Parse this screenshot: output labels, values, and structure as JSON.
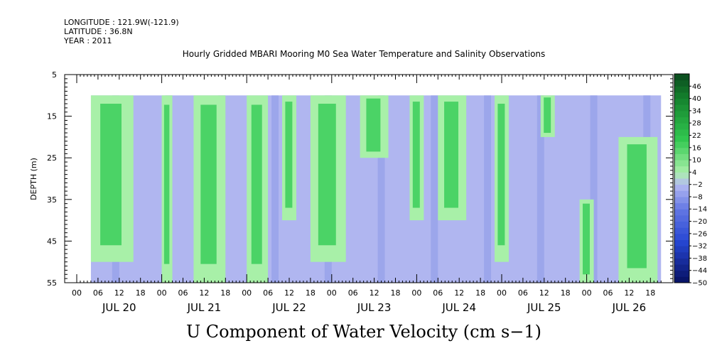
{
  "header": {
    "longitude": "LONGITUDE : 121.9W(-121.9)",
    "latitude": "LATITUDE : 36.8N",
    "year": "YEAR : 2011"
  },
  "chart_data": {
    "type": "heatmap",
    "title": "Hourly Gridded MBARI Mooring M0 Sea Water Temperature and Salinity Observations",
    "xlabel": "U Component of Water Velocity (cm s−1)",
    "ylabel": "DEPTH (m)",
    "y_ticks": [
      "5",
      "15",
      "25",
      "35",
      "45",
      "55"
    ],
    "ylim": [
      5,
      55
    ],
    "y_inverted": true,
    "data_depth_range": [
      10,
      55
    ],
    "x_hour_labels": [
      "00",
      "06",
      "12",
      "18",
      "00",
      "06",
      "12",
      "18",
      "00",
      "06",
      "12",
      "18",
      "00",
      "06",
      "12",
      "18",
      "00",
      "06",
      "12",
      "18",
      "00",
      "06",
      "12",
      "18",
      "00",
      "06",
      "12",
      "18"
    ],
    "x_day_labels": [
      "JUL 20",
      "JUL 21",
      "JUL 22",
      "JUL 23",
      "JUL 24",
      "JUL 25",
      "JUL 26"
    ],
    "x_start": "2011-07-20 00:00",
    "x_end": "2011-07-26 21:00",
    "colorbar_ticks": [
      "46",
      "40",
      "34",
      "28",
      "22",
      "16",
      "10",
      "4",
      "−2",
      "−8",
      "−14",
      "−20",
      "−26",
      "−32",
      "−38",
      "−44",
      "−50"
    ],
    "colorbar_range": [
      -50,
      52
    ],
    "colors": {
      "strong_positive": "#0b4a1e",
      "positive": "#33cc55",
      "weak_positive": "#a8f0a8",
      "weak_negative": "#b0b6f0",
      "negative": "#8d99e8",
      "strong_negative": "#061060"
    },
    "velocity_bands": [
      {
        "time_range": [
          "07-20 04:00",
          "07-20 16:00"
        ],
        "u_sign": "positive",
        "depth_range": [
          10,
          50
        ]
      },
      {
        "time_range": [
          "07-21 00:00",
          "07-21 03:00"
        ],
        "u_sign": "positive",
        "depth_range": [
          10,
          55
        ]
      },
      {
        "time_range": [
          "07-21 09:00",
          "07-21 18:00"
        ],
        "u_sign": "positive",
        "depth_range": [
          10,
          55
        ]
      },
      {
        "time_range": [
          "07-22 00:00",
          "07-22 06:00"
        ],
        "u_sign": "positive",
        "depth_range": [
          10,
          55
        ]
      },
      {
        "time_range": [
          "07-22 10:00",
          "07-22 14:00"
        ],
        "u_sign": "positive",
        "depth_range": [
          10,
          40
        ]
      },
      {
        "time_range": [
          "07-22 18:00",
          "07-23 04:00"
        ],
        "u_sign": "positive",
        "depth_range": [
          10,
          50
        ]
      },
      {
        "time_range": [
          "07-23 08:00",
          "07-23 16:00"
        ],
        "u_sign": "positive",
        "depth_range": [
          10,
          25
        ]
      },
      {
        "time_range": [
          "07-23 22:00",
          "07-24 02:00"
        ],
        "u_sign": "positive",
        "depth_range": [
          10,
          40
        ]
      },
      {
        "time_range": [
          "07-24 06:00",
          "07-24 14:00"
        ],
        "u_sign": "positive",
        "depth_range": [
          10,
          40
        ]
      },
      {
        "time_range": [
          "07-24 22:00",
          "07-25 02:00"
        ],
        "u_sign": "positive",
        "depth_range": [
          10,
          50
        ]
      },
      {
        "time_range": [
          "07-25 11:00",
          "07-25 15:00"
        ],
        "u_sign": "positive",
        "depth_range": [
          10,
          20
        ]
      },
      {
        "time_range": [
          "07-25 22:00",
          "07-26 02:00"
        ],
        "u_sign": "positive",
        "depth_range": [
          35,
          55
        ]
      },
      {
        "time_range": [
          "07-26 09:00",
          "07-26 20:00"
        ],
        "u_sign": "positive",
        "depth_range": [
          20,
          55
        ]
      }
    ]
  }
}
